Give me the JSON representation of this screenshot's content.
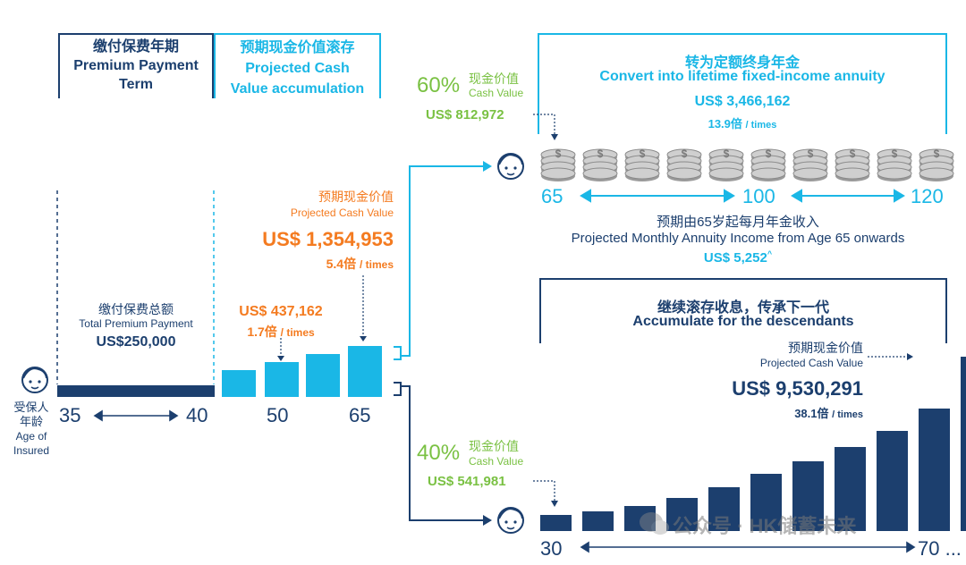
{
  "header": {
    "premium_term": [
      "缴付保费年期",
      "Premium Payment",
      "Term"
    ],
    "accumulation": [
      "预期现金价值滚存",
      "Projected Cash",
      "Value accumulation"
    ]
  },
  "left": {
    "insured_label": [
      "受保人",
      "年龄",
      "Age of",
      "Insured"
    ],
    "total_premium_cn": "缴付保费总额",
    "total_premium_en": "Total Premium Payment",
    "total_premium_value": "US$250,000",
    "cv_cn": "预期现金价值",
    "cv_en": "Projected Cash Value",
    "cv_value": "US$ 1,354,953",
    "cv_times": "5.4倍",
    "cv_times_unit": "/ times",
    "mid_value": "US$ 437,162",
    "mid_times": "1.7倍",
    "mid_times_unit": "/ times",
    "axis": [
      "35",
      "40",
      "50",
      "65"
    ]
  },
  "annuity": {
    "title_cn": "转为定额终身年金",
    "title_en": "Convert into lifetime fixed-income annuity",
    "value": "US$ 3,466,162",
    "times": "13.9倍",
    "times_unit": "/ times",
    "pct": "60%",
    "pct_cn": "现金价值",
    "pct_en": "Cash Value",
    "pct_value": "US$ 812,972",
    "axis": [
      "65",
      "100",
      "120"
    ],
    "monthly_cn": "预期由65岁起每月年金收入",
    "monthly_en": "Projected Monthly Annuity Income from Age 65 onwards",
    "monthly_value": "US$ 5,252",
    "monthly_mark": "^"
  },
  "legacy": {
    "title_cn": "继续滚存收息，传承下一代",
    "title_en": "Accumulate for the descendants",
    "cv_cn": "预期现金价值",
    "cv_en": "Projected Cash Value",
    "value": "US$ 9,530,291",
    "times": "38.1倍",
    "times_unit": "/ times",
    "pct": "40%",
    "pct_cn": "现金价值",
    "pct_en": "Cash Value",
    "pct_value": "US$ 541,981",
    "axis": [
      "30",
      "70 ..."
    ]
  },
  "watermark": "公众号 · HK储蓄未来",
  "colors": {
    "navy": "#1c3f6e",
    "cyan": "#1ab7e6",
    "orange": "#f47b20",
    "green": "#7ac143"
  },
  "chart_data": [
    {
      "type": "bar",
      "categories": [
        "35-40",
        "50",
        "65"
      ],
      "series": [
        {
          "values": [
            250000,
            437162,
            1354953
          ]
        }
      ],
      "notes": "Premium payment term bar (35-40) then projected cash value bars; labels US$437,162 (1.7倍) and US$1,354,953 (5.4倍)"
    },
    {
      "type": "bar",
      "categories": [
        "30",
        "",
        "",
        "",
        "",
        "",
        "",
        "",
        "",
        "70 ..."
      ],
      "series": [
        {
          "values": [
            541981,
            null,
            null,
            null,
            null,
            null,
            null,
            null,
            null,
            9530291
          ]
        }
      ],
      "notes": "Rising bars from US$541,981 to US$9,530,291 (38.1倍)"
    }
  ]
}
